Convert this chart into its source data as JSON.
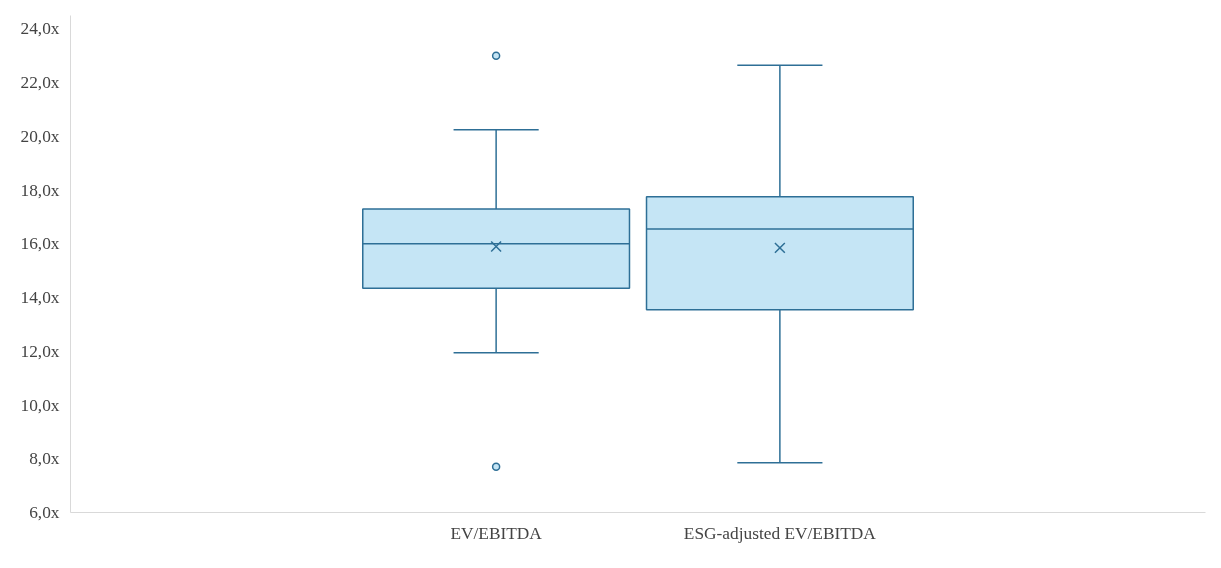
{
  "chart_data": {
    "type": "box",
    "categories": [
      "EV/EBITDA",
      "ESG-adjusted EV/EBITDA"
    ],
    "color": "#2e6f96",
    "boxes": [
      {
        "low": 11.95,
        "q1": 14.35,
        "median": 16.0,
        "q3": 17.3,
        "high": 20.25,
        "mean": 15.9,
        "outliers": [
          23.0,
          7.7
        ]
      },
      {
        "low": 7.85,
        "q1": 13.55,
        "median": 16.55,
        "q3": 17.75,
        "high": 22.65,
        "mean": 15.85
      }
    ],
    "ylim": [
      6,
      24.5
    ],
    "yticks": [
      {
        "value": 6,
        "label": "6,0x"
      },
      {
        "value": 8,
        "label": "8,0x"
      },
      {
        "value": 10,
        "label": "10,0x"
      },
      {
        "value": 12,
        "label": "12,0x"
      },
      {
        "value": 14,
        "label": "14,0x"
      },
      {
        "value": 16,
        "label": "16,0x"
      },
      {
        "value": 18,
        "label": "18,0x"
      },
      {
        "value": 20,
        "label": "20,0x"
      },
      {
        "value": 22,
        "label": "22,0x"
      },
      {
        "value": 24,
        "label": "24,0x"
      }
    ],
    "grid": false
  }
}
